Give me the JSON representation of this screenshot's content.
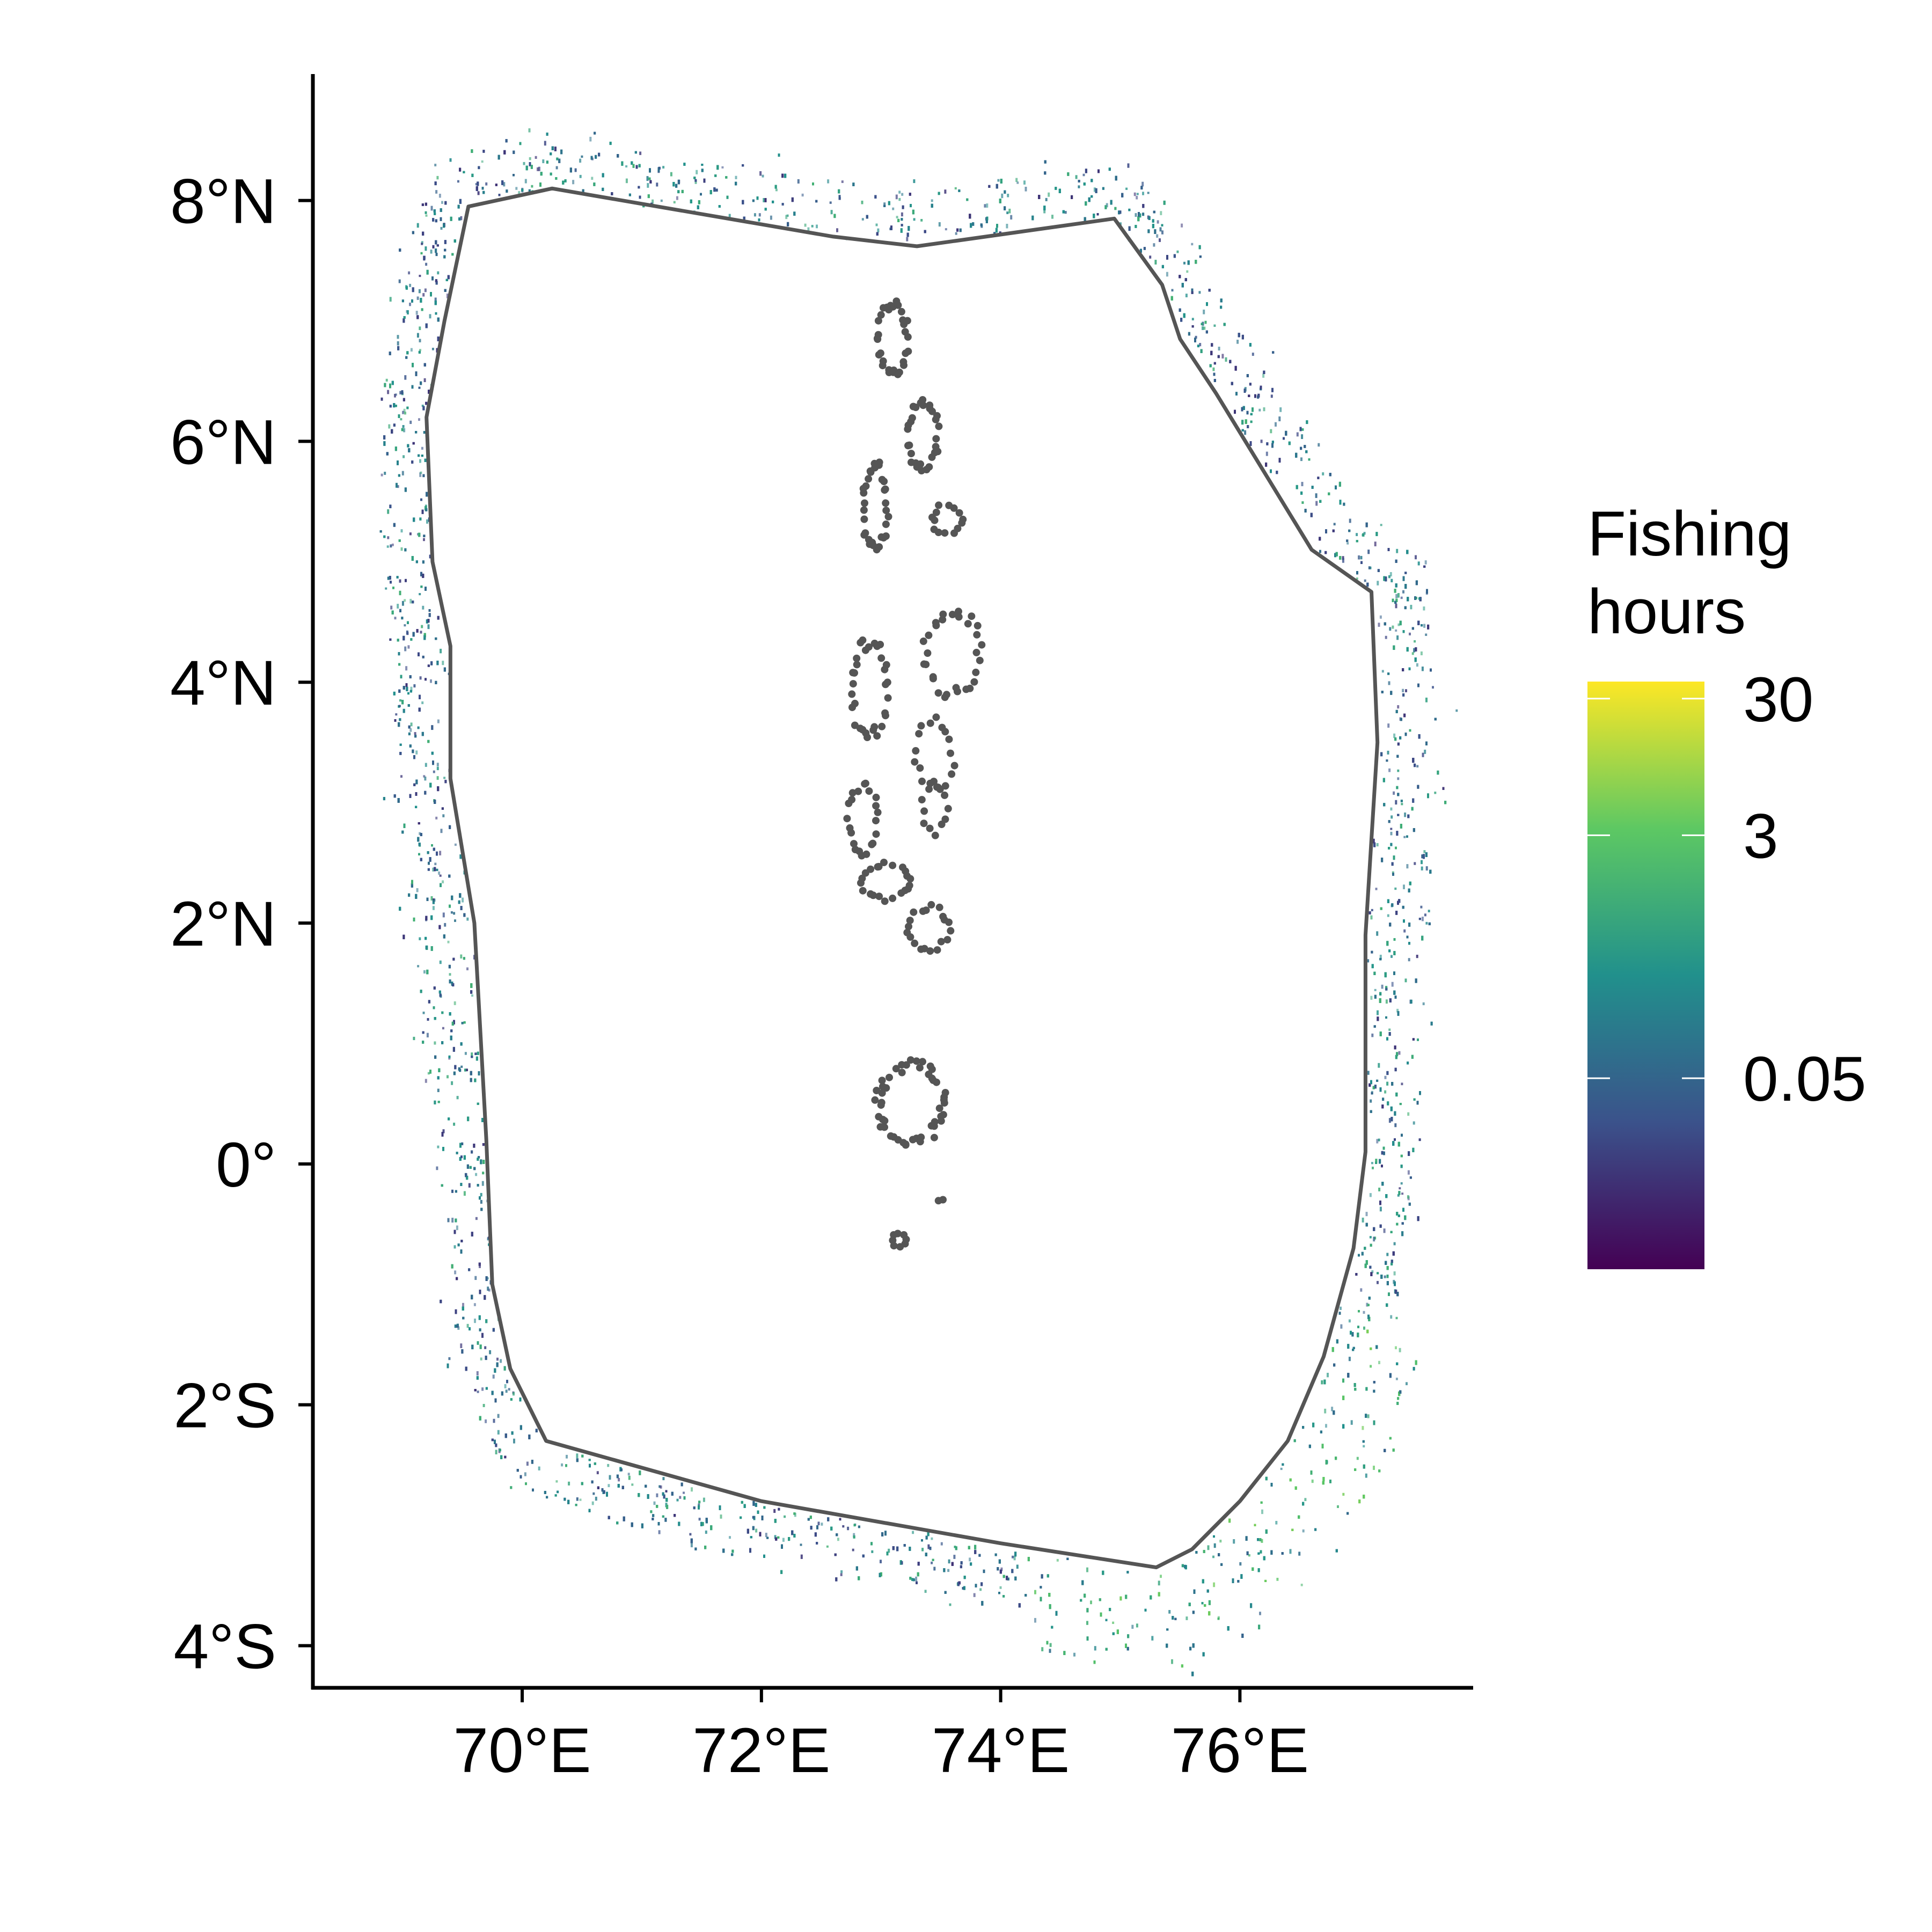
{
  "chart_data": {
    "type": "scatter",
    "projection": "longitude-latitude",
    "x_axis": {
      "range": [
        68.25,
        77.95
      ],
      "ticks": [
        {
          "value": 70,
          "label": "70°E"
        },
        {
          "value": 72,
          "label": "72°E"
        },
        {
          "value": 74,
          "label": "74°E"
        },
        {
          "value": 76,
          "label": "76°E"
        }
      ]
    },
    "y_axis": {
      "range": [
        -4.35,
        9.05
      ],
      "ticks": [
        {
          "value": 8,
          "label": "8°N"
        },
        {
          "value": 6,
          "label": "6°N"
        },
        {
          "value": 4,
          "label": "4°N"
        },
        {
          "value": 2,
          "label": "2°N"
        },
        {
          "value": 0,
          "label": "0°"
        },
        {
          "value": -2,
          "label": "2°S"
        },
        {
          "value": -4,
          "label": "4°S"
        }
      ]
    },
    "grid": false,
    "legend": {
      "title_lines": [
        "Fishing",
        "hours"
      ],
      "placement": "right",
      "scale": "log",
      "colormap": "viridis",
      "range": [
        0.002,
        40
      ],
      "colors": [
        "#440154",
        "#3b528b",
        "#21908c",
        "#5dc863",
        "#fde725"
      ],
      "breaks": [
        {
          "value": 30,
          "label": "30"
        },
        {
          "value": 3,
          "label": "3"
        },
        {
          "value": 0.05,
          "label": "0.05"
        }
      ]
    },
    "eez_boundary": {
      "color": "#555555",
      "lonlat": [
        [
          69.55,
          7.95
        ],
        [
          70.25,
          8.1
        ],
        [
          72.6,
          7.7
        ],
        [
          73.3,
          7.62
        ],
        [
          74.95,
          7.85
        ],
        [
          75.35,
          7.3
        ],
        [
          75.5,
          6.85
        ],
        [
          75.8,
          6.4
        ],
        [
          76.6,
          5.1
        ],
        [
          77.1,
          4.75
        ],
        [
          77.15,
          3.5
        ],
        [
          77.05,
          1.9
        ],
        [
          77.05,
          0.1
        ],
        [
          76.95,
          -0.7
        ],
        [
          76.7,
          -1.6
        ],
        [
          76.4,
          -2.3
        ],
        [
          76.0,
          -2.8
        ],
        [
          75.6,
          -3.2
        ],
        [
          75.3,
          -3.35
        ],
        [
          74.0,
          -3.15
        ],
        [
          72.0,
          -2.8
        ],
        [
          70.2,
          -2.3
        ],
        [
          69.9,
          -1.7
        ],
        [
          69.75,
          -1.0
        ],
        [
          69.7,
          0.2
        ],
        [
          69.6,
          2.0
        ],
        [
          69.4,
          3.2
        ],
        [
          69.4,
          4.3
        ],
        [
          69.25,
          5.0
        ],
        [
          69.2,
          6.2
        ],
        [
          69.35,
          7.0
        ],
        [
          69.55,
          7.95
        ]
      ]
    },
    "atolls": {
      "color": "#555555",
      "groups": [
        {
          "lon": 73.1,
          "lat": 6.85,
          "rlon": 0.12,
          "rlat": 0.3,
          "count": 32
        },
        {
          "lon": 73.35,
          "lat": 6.05,
          "rlon": 0.12,
          "rlat": 0.28,
          "count": 30
        },
        {
          "lon": 72.95,
          "lat": 5.45,
          "rlon": 0.1,
          "rlat": 0.35,
          "count": 32
        },
        {
          "lon": 73.55,
          "lat": 5.35,
          "rlon": 0.12,
          "rlat": 0.12,
          "count": 14
        },
        {
          "lon": 73.6,
          "lat": 4.25,
          "rlon": 0.22,
          "rlat": 0.35,
          "count": 30
        },
        {
          "lon": 72.9,
          "lat": 3.95,
          "rlon": 0.15,
          "rlat": 0.38,
          "count": 32
        },
        {
          "lon": 73.45,
          "lat": 3.4,
          "rlon": 0.15,
          "rlat": 0.28,
          "count": 18
        },
        {
          "lon": 72.85,
          "lat": 2.85,
          "rlon": 0.12,
          "rlat": 0.28,
          "count": 22
        },
        {
          "lon": 73.45,
          "lat": 2.95,
          "rlon": 0.1,
          "rlat": 0.2,
          "count": 12
        },
        {
          "lon": 73.05,
          "lat": 2.35,
          "rlon": 0.2,
          "rlat": 0.15,
          "count": 22
        },
        {
          "lon": 73.4,
          "lat": 1.95,
          "rlon": 0.16,
          "rlat": 0.18,
          "count": 20
        },
        {
          "lon": 73.25,
          "lat": 0.5,
          "rlon": 0.27,
          "rlat": 0.32,
          "count": 50
        },
        {
          "lon": 73.15,
          "lat": -0.63,
          "rlon": 0.06,
          "rlat": 0.06,
          "count": 8
        },
        {
          "lon": 73.5,
          "lat": -0.3,
          "rlon": 0.02,
          "rlat": 0.02,
          "count": 2
        }
      ]
    }
  }
}
